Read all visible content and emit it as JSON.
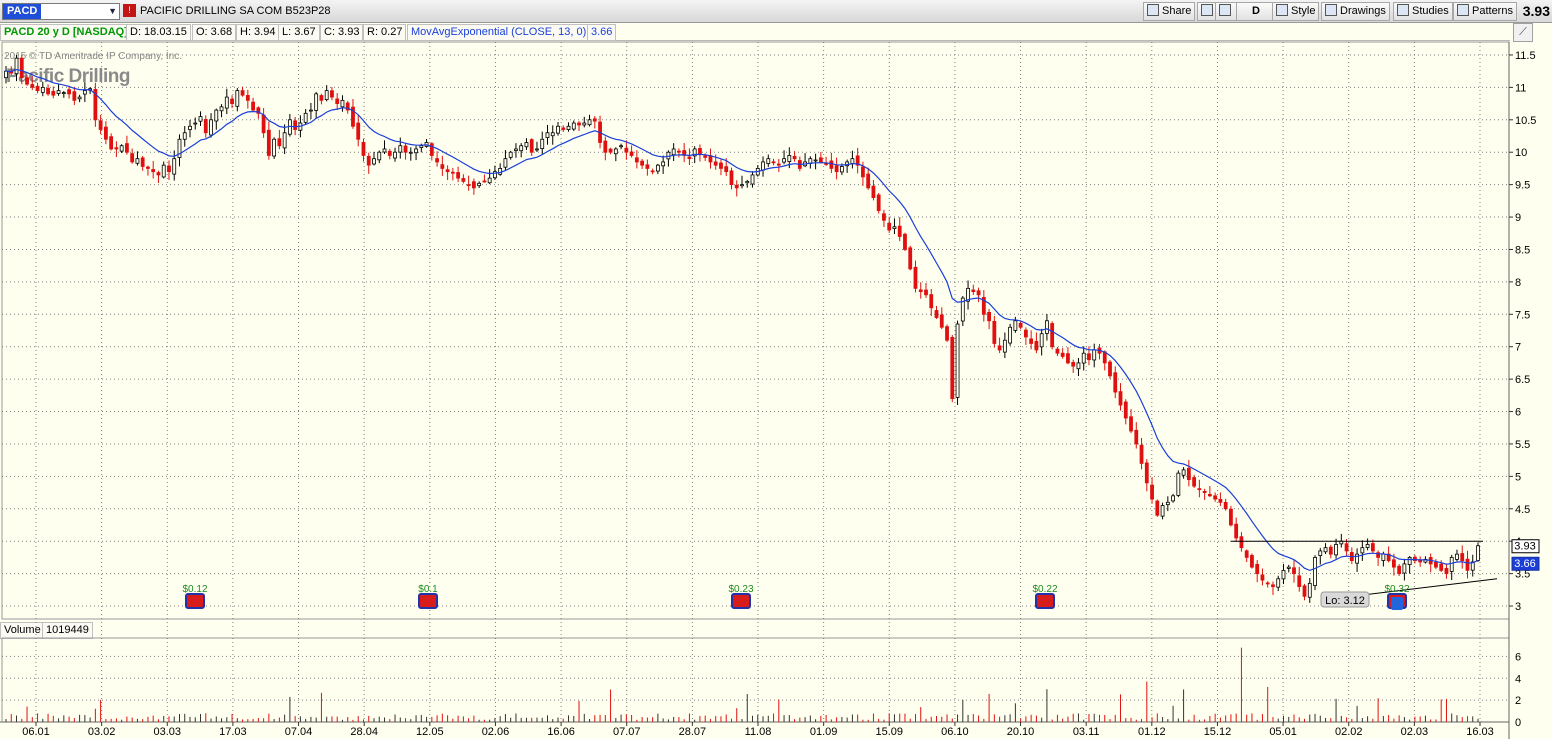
{
  "toolbar": {
    "symbol": "PACD",
    "alert_icon": "alert-icon",
    "company_name": "PACIFIC DRILLING SA COM",
    "cusip": "B523P28",
    "share_label": "Share",
    "d_label": "D",
    "style_label": "Style",
    "drawings_label": "Drawings",
    "studies_label": "Studies",
    "patterns_label": "Patterns",
    "last_price": "3.93"
  },
  "infobar": {
    "title": "PACD 20 y D [NASDAQ]",
    "date": "D: 18.03.15",
    "open": "O: 3.68",
    "high": "H: 3.94",
    "low": "L: 3.67",
    "close": "C: 3.93",
    "range": "R: 0.27",
    "study": "MovAvgExponential (CLOSE, 13, 0)",
    "study_value": "3.66",
    "title_color": "#009900",
    "study_color": "#1a3fd8"
  },
  "copyright": "2015 © TD Ameritrade IP Company, Inc.",
  "logo_text": "Pacific Drilling",
  "volume_bar": {
    "label": "Volume",
    "value": "1019449"
  },
  "chart_data": {
    "type": "candlestick",
    "price_axis": {
      "ticks": [
        "11.5",
        "11",
        "10.5",
        "10",
        "9.5",
        "9",
        "8.5",
        "8",
        "7.5",
        "7",
        "6.5",
        "6",
        "5.5",
        "5",
        "4.5",
        "4",
        "3.5",
        "3"
      ],
      "range": [
        2.8,
        11.7
      ]
    },
    "volume_axis": {
      "ticks": [
        "6",
        "4",
        "2",
        "0"
      ],
      "range": [
        0,
        7.5
      ]
    },
    "x_labels": [
      "06.01",
      "03.02",
      "03.03",
      "17.03",
      "07.04",
      "28.04",
      "12.05",
      "02.06",
      "16.06",
      "07.07",
      "28.07",
      "11.08",
      "01.09",
      "15.09",
      "06.10",
      "20.10",
      "03.11",
      "01.12",
      "15.12",
      "05.01",
      "02.02",
      "02.03",
      "16.03"
    ],
    "closes": [
      11.25,
      11.22,
      11.45,
      11.15,
      11.05,
      11.0,
      10.95,
      11.0,
      10.9,
      10.88,
      10.95,
      10.92,
      10.9,
      10.8,
      10.85,
      10.95,
      10.98,
      10.5,
      10.35,
      10.2,
      10.05,
      10.05,
      10.1,
      10.0,
      9.85,
      9.9,
      9.78,
      9.75,
      9.7,
      9.65,
      9.8,
      9.7,
      9.9,
      10.2,
      10.3,
      10.4,
      10.45,
      10.55,
      10.3,
      10.5,
      10.65,
      10.7,
      10.85,
      10.75,
      10.95,
      10.88,
      10.8,
      10.65,
      10.6,
      10.3,
      9.95,
      10.2,
      10.1,
      10.3,
      10.5,
      10.35,
      10.45,
      10.6,
      10.65,
      10.9,
      10.8,
      10.95,
      10.85,
      10.75,
      10.8,
      10.65,
      10.4,
      10.2,
      9.95,
      9.8,
      9.9,
      10.0,
      10.05,
      9.95,
      10.0,
      10.1,
      10.0,
      10.0,
      10.05,
      10.1,
      10.15,
      9.95,
      9.85,
      9.75,
      9.7,
      9.68,
      9.6,
      9.55,
      9.5,
      9.45,
      9.52,
      9.55,
      9.6,
      9.7,
      9.75,
      9.9,
      10.0,
      10.05,
      10.1,
      10.15,
      10.0,
      10.05,
      10.2,
      10.3,
      10.3,
      10.4,
      10.35,
      10.4,
      10.45,
      10.42,
      10.45,
      10.5,
      10.48,
      10.15,
      10.0,
      10.0,
      10.05,
      10.1,
      10.0,
      9.95,
      9.85,
      9.8,
      9.75,
      9.7,
      9.8,
      9.85,
      10.0,
      10.05,
      10.0,
      9.95,
      9.9,
      10.05,
      9.98,
      9.92,
      9.85,
      9.8,
      9.75,
      9.7,
      9.5,
      9.45,
      9.5,
      9.55,
      9.65,
      9.75,
      9.85,
      9.9,
      9.85,
      9.8,
      9.9,
      9.95,
      9.9,
      9.75,
      9.85,
      9.9,
      9.88,
      9.85,
      9.82,
      9.75,
      9.7,
      9.78,
      9.85,
      9.9,
      9.8,
      9.62,
      9.45,
      9.3,
      9.1,
      8.95,
      8.8,
      8.85,
      8.7,
      8.5,
      8.2,
      7.9,
      7.85,
      7.8,
      7.6,
      7.45,
      7.3,
      7.1,
      6.2,
      7.35,
      7.75,
      7.9,
      7.85,
      7.8,
      7.5,
      7.4,
      7.05,
      6.95,
      7.1,
      7.3,
      7.4,
      7.3,
      7.15,
      7.05,
      6.95,
      7.2,
      7.4,
      7.0,
      6.9,
      6.85,
      6.75,
      6.7,
      6.75,
      6.9,
      6.8,
      6.95,
      6.9,
      6.75,
      6.55,
      6.3,
      6.1,
      5.9,
      5.7,
      5.5,
      5.2,
      4.9,
      4.65,
      4.4,
      4.55,
      4.6,
      4.7,
      5.05,
      5.1,
      4.95,
      4.85,
      4.8,
      4.75,
      4.7,
      4.65,
      4.6,
      4.5,
      4.25,
      4.05,
      3.9,
      3.75,
      3.6,
      3.5,
      3.4,
      3.35,
      3.3,
      3.42,
      3.55,
      3.6,
      3.5,
      3.3,
      3.15,
      3.35,
      3.75,
      3.85,
      3.9,
      3.8,
      3.95,
      4.0,
      3.85,
      3.7,
      3.8,
      3.9,
      3.95,
      3.85,
      3.75,
      3.8,
      3.7,
      3.6,
      3.5,
      3.65,
      3.75,
      3.7,
      3.68,
      3.72,
      3.65,
      3.6,
      3.55,
      3.5,
      3.75,
      3.8,
      3.7,
      3.55,
      3.68,
      3.93
    ],
    "ema_period": 13,
    "ema_last": 3.66,
    "resistance": 4.0,
    "support_line": [
      [
        3.1,
        3.42
      ]
    ],
    "dividends": [
      "$0.12",
      "$0.1",
      "$0.23",
      "$0.22",
      "$0.32"
    ],
    "low_label": "Lo: 3.12",
    "price_marker_close": "3.93",
    "price_marker_ema": "3.66",
    "colors": {
      "up": "#000000",
      "down": "#e01010",
      "ema": "#1a3fd8",
      "volume": "#e01010",
      "grid": "#7f7f7f"
    }
  }
}
